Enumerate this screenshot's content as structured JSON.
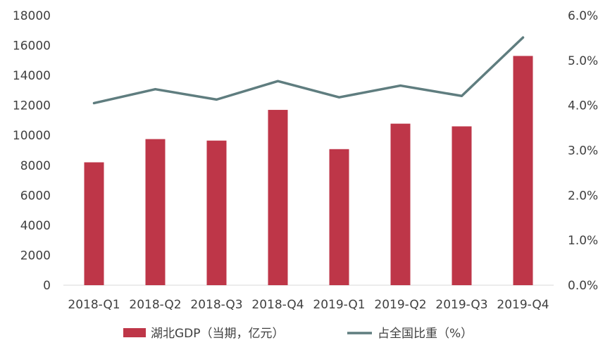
{
  "chart_data": {
    "type": "bar",
    "categories": [
      "2018-Q1",
      "2018-Q2",
      "2018-Q3",
      "2018-Q4",
      "2019-Q1",
      "2019-Q2",
      "2019-Q3",
      "2019-Q4"
    ],
    "series": [
      {
        "name": "湖北GDP（当期，亿元）",
        "type": "bar",
        "axis": "left",
        "color": "#BE3648",
        "values": [
          8200,
          9750,
          9650,
          11700,
          9080,
          10780,
          10600,
          15300
        ]
      },
      {
        "name": "占全国比重（%）",
        "type": "line",
        "axis": "right",
        "color": "#5F7D7F",
        "values": [
          4.05,
          4.36,
          4.13,
          4.54,
          4.18,
          4.44,
          4.21,
          5.51
        ]
      }
    ],
    "y_left": {
      "ticks": [
        "0",
        "2000",
        "4000",
        "6000",
        "8000",
        "10000",
        "12000",
        "14000",
        "16000",
        "18000"
      ],
      "ylim": [
        0,
        18000
      ]
    },
    "y_right": {
      "ticks": [
        "0.0%",
        "1.0%",
        "2.0%",
        "3.0%",
        "4.0%",
        "5.0%",
        "6.0%"
      ],
      "ylim": [
        0,
        6
      ]
    },
    "legend": {
      "position": "bottom"
    },
    "grid": false
  }
}
